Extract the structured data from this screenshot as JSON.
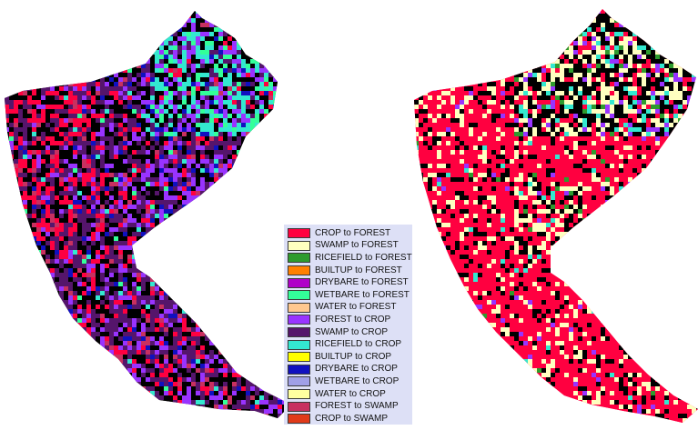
{
  "legend": {
    "items": [
      {
        "label": "CROP to FOREST",
        "color": "#ff0040"
      },
      {
        "label": "SWAMP to FOREST",
        "color": "#ffffc0"
      },
      {
        "label": "RICEFIELD to FOREST",
        "color": "#2e9b2e"
      },
      {
        "label": "BUILTUP to FOREST",
        "color": "#ff8000"
      },
      {
        "label": "DRYBARE to FOREST",
        "color": "#b000c8"
      },
      {
        "label": "WETBARE to FOREST",
        "color": "#33ff99"
      },
      {
        "label": "WATER to FOREST",
        "color": "#ffc890"
      },
      {
        "label": "FOREST to CROP",
        "color": "#9933ff"
      },
      {
        "label": "SWAMP to CROP",
        "color": "#55156b"
      },
      {
        "label": "RICEFIELD to CROP",
        "color": "#33e8d0"
      },
      {
        "label": "BUILTUP to CROP",
        "color": "#ffff00"
      },
      {
        "label": "DRYBARE to CROP",
        "color": "#1010c0"
      },
      {
        "label": "WETBARE to CROP",
        "color": "#a0a0e8"
      },
      {
        "label": "WATER to CROP",
        "color": "#ffffa0"
      },
      {
        "label": "FOREST to SWAMP",
        "color": "#c83060"
      },
      {
        "label": "CROP to SWAMP",
        "color": "#e03a1a"
      }
    ]
  },
  "maps": {
    "left": {
      "palette": [
        "#000000",
        "#55156b",
        "#9933ff",
        "#ff0040",
        "#33e8d0",
        "#1010c0",
        "#c83060",
        "#33ff99"
      ]
    },
    "right": {
      "palette": [
        "#000000",
        "#ff0040",
        "#ffffc0",
        "#33e8d0",
        "#9933ff",
        "#2e9b2e"
      ]
    }
  }
}
